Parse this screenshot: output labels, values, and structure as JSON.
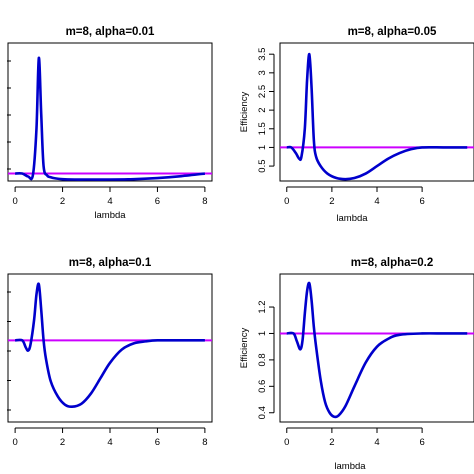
{
  "chart_data": [
    {
      "type": "line",
      "title": "m=8, alpha=0.01",
      "xlabel": "lambda",
      "ylabel": "",
      "xlim": [
        -0.3,
        8.3
      ],
      "ylim": [
        0.8,
        4.5
      ],
      "xticks": [
        0,
        2,
        4,
        6,
        8
      ],
      "yticks": [],
      "reference_line": 1.0,
      "series": [
        {
          "color": "#0000cc",
          "x": [
            0,
            0.3,
            0.55,
            0.75,
            0.9,
            1.0,
            1.1,
            1.2,
            1.35,
            1.5,
            1.7,
            2.0,
            2.5,
            3,
            4,
            5,
            6,
            7,
            8
          ],
          "y": [
            1.0,
            1.0,
            0.92,
            0.96,
            2.2,
            4.1,
            2.6,
            1.2,
            0.95,
            0.9,
            0.87,
            0.85,
            0.84,
            0.84,
            0.84,
            0.85,
            0.88,
            0.93,
            1.0
          ]
        }
      ]
    },
    {
      "type": "line",
      "title": "m=8, alpha=0.05",
      "xlabel": "lambda",
      "ylabel": "Efficiency",
      "xlim": [
        -0.3,
        8.3
      ],
      "ylim": [
        0.1,
        3.8
      ],
      "xticks": [
        0,
        2,
        4,
        6
      ],
      "yticks": [
        0.5,
        1.0,
        1.5,
        2.0,
        2.5,
        3.0,
        3.5
      ],
      "reference_line": 1.0,
      "series": [
        {
          "color": "#0000cc",
          "x": [
            0,
            0.2,
            0.4,
            0.55,
            0.65,
            0.8,
            0.9,
            1.0,
            1.1,
            1.2,
            1.3,
            1.5,
            1.8,
            2.2,
            2.6,
            3.0,
            3.5,
            4.0,
            4.5,
            5.0,
            5.5,
            6.0,
            7.0,
            8.0
          ],
          "y": [
            1.0,
            1.0,
            0.85,
            0.7,
            0.75,
            1.5,
            2.8,
            3.5,
            2.6,
            1.2,
            0.75,
            0.5,
            0.3,
            0.18,
            0.15,
            0.18,
            0.3,
            0.5,
            0.7,
            0.85,
            0.95,
            1.0,
            1.0,
            1.0
          ]
        }
      ]
    },
    {
      "type": "line",
      "title": "m=8, alpha=0.1",
      "xlabel": "",
      "ylabel": "",
      "xlim": [
        -0.3,
        8.3
      ],
      "ylim": [
        0.2,
        1.65
      ],
      "xticks": [
        0,
        2,
        4,
        6,
        8
      ],
      "yticks": [],
      "reference_line": 1.0,
      "series": [
        {
          "color": "#0000cc",
          "x": [
            0,
            0.3,
            0.45,
            0.55,
            0.65,
            0.8,
            0.9,
            1.0,
            1.1,
            1.2,
            1.3,
            1.5,
            1.8,
            2.1,
            2.4,
            2.8,
            3.2,
            3.6,
            4.0,
            4.5,
            5.0,
            5.5,
            6.0,
            7.0,
            8.0
          ],
          "y": [
            1.0,
            1.0,
            0.93,
            0.9,
            0.96,
            1.2,
            1.45,
            1.55,
            1.3,
            1.0,
            0.82,
            0.6,
            0.45,
            0.37,
            0.35,
            0.38,
            0.48,
            0.63,
            0.78,
            0.91,
            0.97,
            0.99,
            1.0,
            1.0,
            1.0
          ]
        }
      ]
    },
    {
      "type": "line",
      "title": "m=8, alpha=0.2",
      "xlabel": "lambda",
      "ylabel": "Efficiency",
      "xlim": [
        -0.3,
        8.3
      ],
      "ylim": [
        0.33,
        1.45
      ],
      "xticks": [
        0,
        2,
        4,
        6
      ],
      "yticks": [
        0.4,
        0.6,
        0.8,
        1.0,
        1.2
      ],
      "reference_line": 1.0,
      "series": [
        {
          "color": "#0000cc",
          "x": [
            0,
            0.3,
            0.45,
            0.6,
            0.7,
            0.8,
            0.9,
            1.0,
            1.1,
            1.2,
            1.3,
            1.5,
            1.7,
            1.9,
            2.1,
            2.3,
            2.6,
            3.0,
            3.5,
            4.0,
            4.5,
            5.0,
            6.0,
            7.0,
            8.0
          ],
          "y": [
            1.0,
            1.0,
            0.94,
            0.88,
            0.95,
            1.15,
            1.32,
            1.38,
            1.25,
            1.05,
            0.9,
            0.65,
            0.48,
            0.4,
            0.37,
            0.38,
            0.45,
            0.6,
            0.78,
            0.9,
            0.96,
            0.99,
            1.0,
            1.0,
            1.0
          ]
        }
      ]
    }
  ]
}
